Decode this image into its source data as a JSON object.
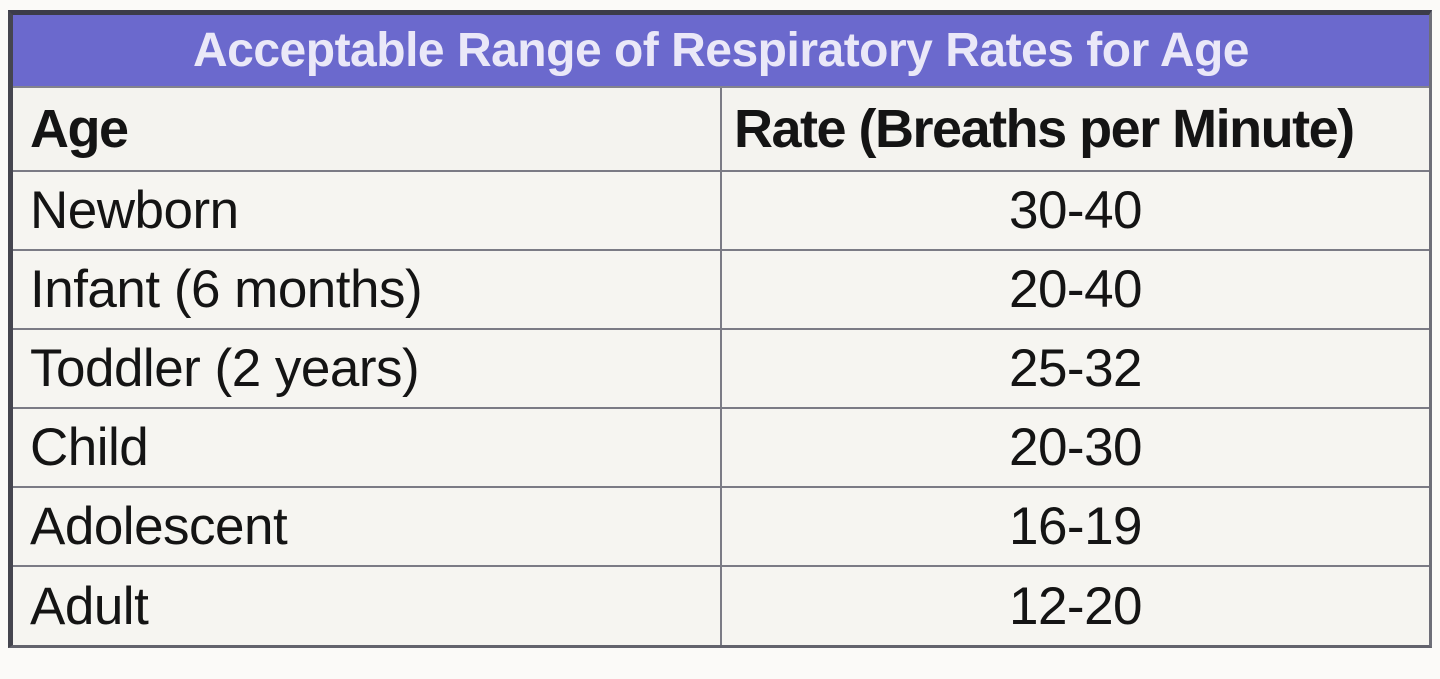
{
  "table": {
    "title": "Acceptable Range of Respiratory Rates for Age",
    "headers": {
      "age": "Age",
      "rate": "Rate (Breaths per Minute)"
    },
    "rows": [
      {
        "age": "Newborn",
        "rate": "30-40"
      },
      {
        "age": "Infant (6 months)",
        "rate": "20-40"
      },
      {
        "age": "Toddler (2 years)",
        "rate": "25-32"
      },
      {
        "age": "Child",
        "rate": "20-30"
      },
      {
        "age": "Adolescent",
        "rate": "16-19"
      },
      {
        "age": "Adult",
        "rate": "12-20"
      }
    ]
  },
  "colors": {
    "banner_background": "#6b69cd",
    "banner_text": "#eae8f8",
    "cell_background": "#f6f5f1",
    "grid_line": "#7b7b85",
    "outer_border_dark": "#3c3c49",
    "body_text": "#141414",
    "page_background": "#fbfaf8"
  },
  "chart_data": {
    "type": "table",
    "title": "Acceptable Range of Respiratory Rates for Age",
    "columns": [
      "Age",
      "Rate (Breaths per Minute)"
    ],
    "rows": [
      [
        "Newborn",
        "30-40"
      ],
      [
        "Infant (6 months)",
        "20-40"
      ],
      [
        "Toddler (2 years)",
        "25-32"
      ],
      [
        "Child",
        "20-30"
      ],
      [
        "Adolescent",
        "16-19"
      ],
      [
        "Adult",
        "12-20"
      ]
    ],
    "rates_numeric": [
      {
        "age": "Newborn",
        "min": 30,
        "max": 40
      },
      {
        "age": "Infant (6 months)",
        "min": 20,
        "max": 40
      },
      {
        "age": "Toddler (2 years)",
        "min": 25,
        "max": 32
      },
      {
        "age": "Child",
        "min": 20,
        "max": 30
      },
      {
        "age": "Adolescent",
        "min": 16,
        "max": 19
      },
      {
        "age": "Adult",
        "min": 12,
        "max": 20
      }
    ],
    "layout": {
      "header_row": true,
      "title_banner": true,
      "grid": true
    }
  }
}
